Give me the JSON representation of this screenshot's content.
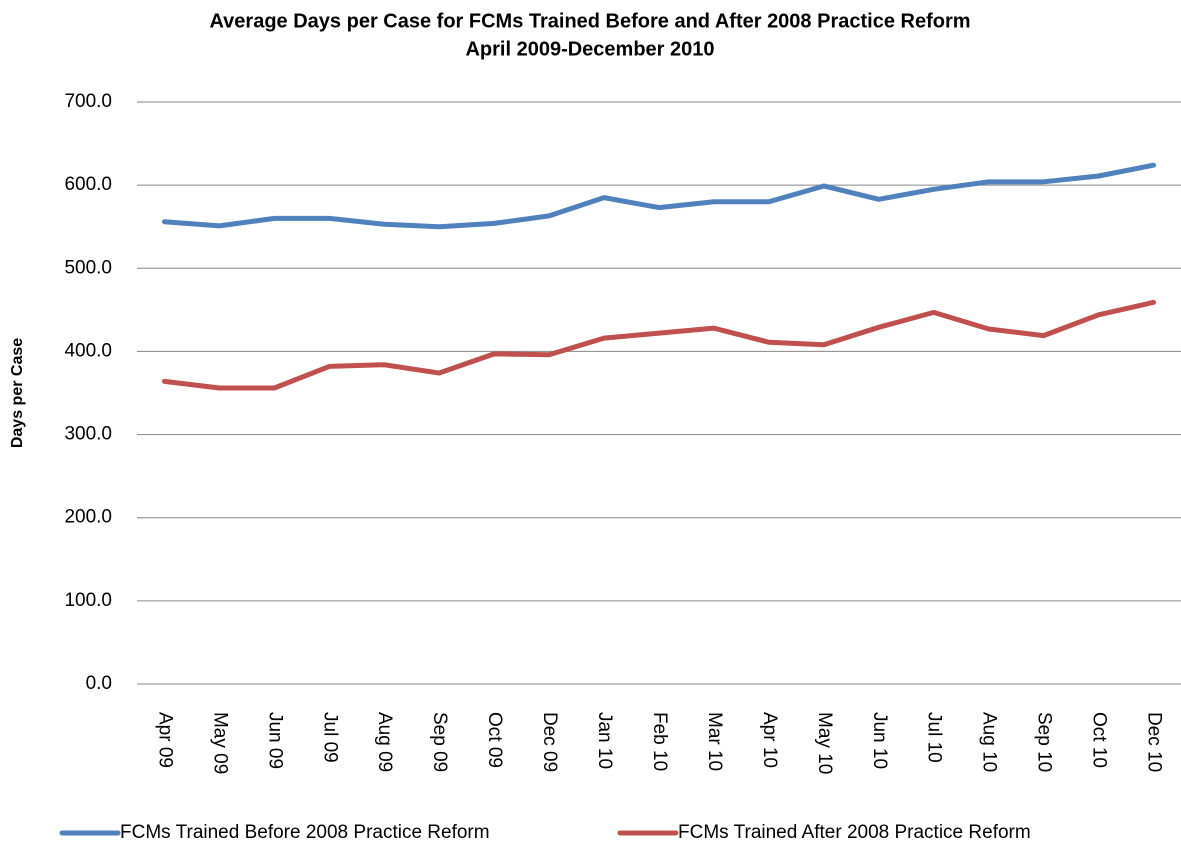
{
  "chart_data": {
    "type": "line",
    "title": "Average Days per Case for FCMs Trained Before and After 2008 Practice Reform",
    "subtitle": "April 2009-December 2010",
    "y_label": "Days per Case",
    "categories": [
      "Apr 09",
      "May 09",
      "Jun 09",
      "Jul 09",
      "Aug 09",
      "Sep 09",
      "Oct 09",
      "Dec 09",
      "Jan 10",
      "Feb 10",
      "Mar 10",
      "Apr 10",
      "May 10",
      "Jun 10",
      "Jul 10",
      "Aug 10",
      "Sep 10",
      "Oct 10",
      "Dec 10"
    ],
    "series": [
      {
        "name": "FCMs Trained Before 2008 Practice Reform",
        "color": "#4f81bd",
        "values": [
          556,
          551,
          560,
          560,
          553,
          550,
          554,
          563,
          585,
          573,
          580,
          580,
          599,
          583,
          595,
          604,
          604,
          611,
          624
        ]
      },
      {
        "name": "FCMs Trained After 2008 Practice Reform",
        "color": "#c0504d",
        "values": [
          364,
          356,
          356,
          382,
          384,
          374,
          397,
          396,
          416,
          422,
          428,
          411,
          408,
          429,
          447,
          427,
          419,
          444,
          459
        ]
      }
    ],
    "ylim": [
      0,
      700
    ],
    "yticks": [
      {
        "value": 0,
        "label": "0.0"
      },
      {
        "value": 100,
        "label": "100.0"
      },
      {
        "value": 200,
        "label": "200.0"
      },
      {
        "value": 300,
        "label": "300.0"
      },
      {
        "value": 400,
        "label": "400.0"
      },
      {
        "value": 500,
        "label": "500.0"
      },
      {
        "value": 600,
        "label": "600.0"
      },
      {
        "value": 700,
        "label": "700.0"
      }
    ],
    "grid": true,
    "legend": "bottom"
  }
}
